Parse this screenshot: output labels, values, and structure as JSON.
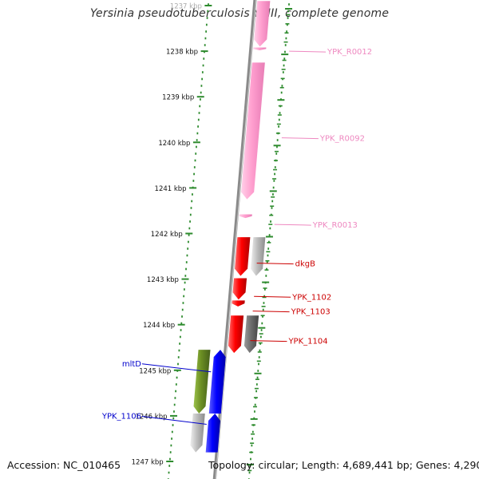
{
  "title": "Yersinia pseudotuberculosis YPIII, complete genome",
  "footer": {
    "accession": "Accession: NC_010465",
    "topology": "Topology: circular; Length: 4,689,441 bp; Genes: 4,290"
  },
  "ruler": {
    "unit": "kbp",
    "ticks": [
      {
        "label": "1237 kbp",
        "kbp": 1237
      },
      {
        "label": "1238 kbp",
        "kbp": 1238
      },
      {
        "label": "1239 kbp",
        "kbp": 1239
      },
      {
        "label": "1240 kbp",
        "kbp": 1240
      },
      {
        "label": "1241 kbp",
        "kbp": 1241
      },
      {
        "label": "1242 kbp",
        "kbp": 1242
      },
      {
        "label": "1243 kbp",
        "kbp": 1243
      },
      {
        "label": "1244 kbp",
        "kbp": 1244
      },
      {
        "label": "1245 kbp",
        "kbp": 1245
      },
      {
        "label": "1246 kbp",
        "kbp": 1246
      },
      {
        "label": "1247 kbp",
        "kbp": 1247
      }
    ]
  },
  "colors": {
    "backbone": "#8a8a8a",
    "ruler_dots": "#2e8b2e",
    "rRNA": "#ff9fcf",
    "rRNA_label": "#ee88c0",
    "cds_red": "#ff0000",
    "cds_gray": "#bdbdbd",
    "cds_darkgray": "#6e6e6e",
    "cds_olive": "#6b8e23",
    "cds_blue": "#0000ff",
    "label_red": "#cc0000",
    "label_blue": "#0000cc"
  },
  "features": [
    {
      "name": "YPK_R0012",
      "strand": "+",
      "start_kbp": 1236.9,
      "end_kbp": 1237.9,
      "color": "rRNA",
      "label_color": "rRNA_label",
      "label_kbp": 1238.0
    },
    {
      "name": "",
      "strand": "+",
      "start_kbp": 1237.92,
      "end_kbp": 1237.98,
      "color": "rRNA",
      "label_color": "rRNA_label"
    },
    {
      "name": "YPK_R0092",
      "strand": "+",
      "start_kbp": 1238.25,
      "end_kbp": 1241.25,
      "color": "rRNA",
      "label_color": "rRNA_label",
      "label_kbp": 1239.9
    },
    {
      "name": "YPK_R0013",
      "strand": "+",
      "start_kbp": 1241.58,
      "end_kbp": 1241.66,
      "color": "rRNA",
      "label_color": "rRNA_label",
      "label_kbp": 1241.8
    },
    {
      "name": "dkgB",
      "strand": "+",
      "start_kbp": 1242.08,
      "end_kbp": 1242.93,
      "color": "cds_red",
      "label_color": "label_red",
      "label_kbp": 1242.65
    },
    {
      "name": "",
      "strand": "+",
      "start_kbp": 1242.08,
      "end_kbp": 1242.93,
      "color": "cds_gray",
      "outer": true,
      "label_color": "label_red"
    },
    {
      "name": "YPK_1102",
      "strand": "+",
      "start_kbp": 1242.98,
      "end_kbp": 1243.45,
      "color": "cds_red",
      "label_color": "label_red",
      "label_kbp": 1243.38
    },
    {
      "name": "YPK_1103",
      "strand": "+",
      "start_kbp": 1243.47,
      "end_kbp": 1243.6,
      "color": "cds_red",
      "label_color": "label_red",
      "label_kbp": 1243.7
    },
    {
      "name": "YPK_1104",
      "strand": "+",
      "start_kbp": 1243.8,
      "end_kbp": 1244.62,
      "color": "cds_red",
      "label_color": "label_red",
      "label_kbp": 1244.35
    },
    {
      "name": "",
      "strand": "+",
      "start_kbp": 1243.8,
      "end_kbp": 1244.62,
      "color": "cds_darkgray",
      "outer": true,
      "label_color": "label_red"
    },
    {
      "name": "",
      "strand": "+",
      "start_kbp": 1244.55,
      "end_kbp": 1245.95,
      "color": "cds_olive",
      "inner_lane": 2,
      "label_color": "label_blue"
    },
    {
      "name": "mltD",
      "strand": "-",
      "start_kbp": 1244.55,
      "end_kbp": 1245.95,
      "color": "cds_blue",
      "inner_lane": 1,
      "label_color": "label_blue",
      "label_kbp": 1245.0
    },
    {
      "name": "",
      "strand": "+",
      "start_kbp": 1245.95,
      "end_kbp": 1246.8,
      "color": "cds_gray",
      "inner_lane": 2,
      "label_color": "label_blue"
    },
    {
      "name": "YPK_1106",
      "strand": "-",
      "start_kbp": 1245.95,
      "end_kbp": 1246.8,
      "color": "cds_blue",
      "inner_lane": 1,
      "label_color": "label_blue",
      "label_kbp": 1246.15
    }
  ]
}
